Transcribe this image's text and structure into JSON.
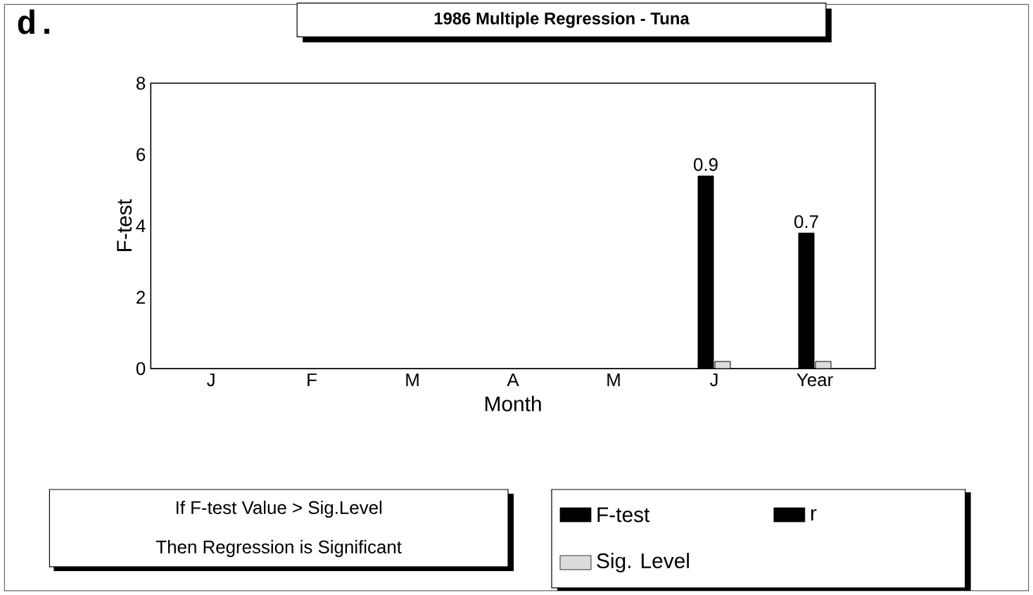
{
  "chart_data": {
    "type": "bar",
    "title": "1986 Multiple Regression - Tuna",
    "xlabel": "Month",
    "ylabel": "F-test",
    "categories": [
      "J",
      "F",
      "M",
      "A",
      "M",
      "J",
      "Year"
    ],
    "series": [
      {
        "name": "F-test",
        "color": "#000000",
        "values": [
          null,
          null,
          null,
          null,
          null,
          5.4,
          3.8
        ]
      },
      {
        "name": "r",
        "color": "#000000",
        "values": [
          null,
          null,
          null,
          null,
          null,
          null,
          null
        ]
      },
      {
        "name": "Sig. Level",
        "color": "#dcdcdc",
        "values": [
          null,
          null,
          null,
          null,
          null,
          0.2,
          0.2
        ]
      }
    ],
    "ylim": [
      0,
      8
    ],
    "yticks": [
      0,
      2,
      4,
      6,
      8
    ],
    "grid": false,
    "legend": "bottom",
    "annotations": [
      "d.",
      "If F-test Value > Sig.Level",
      "Then Regression is Significant",
      "0.9",
      "0.7"
    ]
  }
}
